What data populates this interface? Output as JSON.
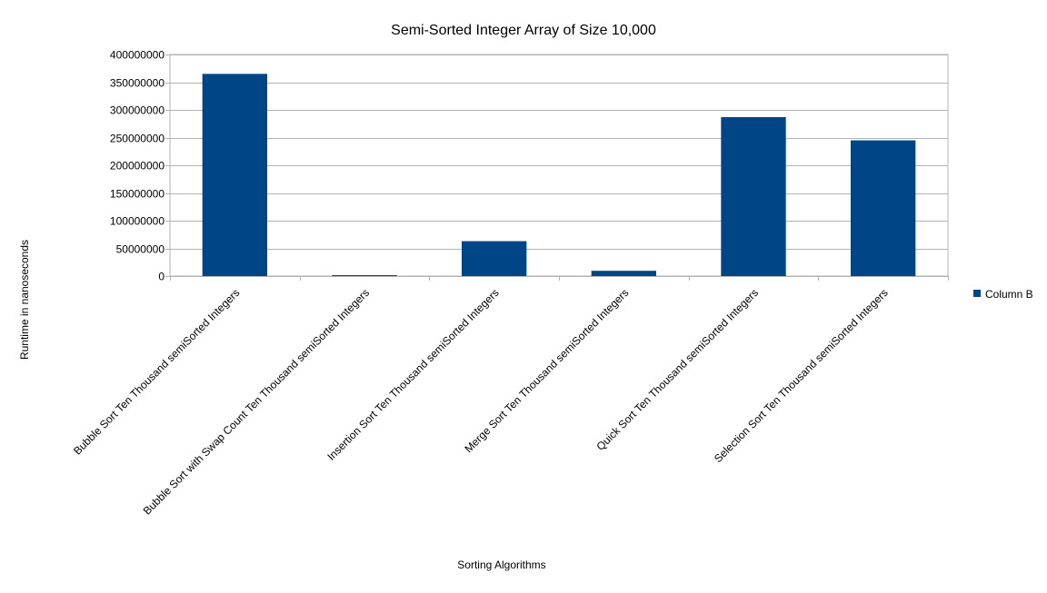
{
  "chart_data": {
    "type": "bar",
    "title": "Semi-Sorted Integer Array of Size 10,000",
    "xlabel": "Sorting Algorithms",
    "ylabel": "Runtime in nanoseconds",
    "categories": [
      "Bubble Sort Ten Thousand semiSorted Integers",
      "Bubble Sort with Swap Count Ten Thousand semiSorted Integers",
      "Insertion Sort Ten Thousand semiSorted Integers",
      "Merge Sort Ten Thousand semiSorted Integers",
      "Quick Sort Ten Thousand semiSorted Integers",
      "Selection Sort Ten Thousand semiSorted Integers"
    ],
    "series": [
      {
        "name": "Column B",
        "color": "#004586",
        "values": [
          365000000,
          500000,
          63000000,
          9500000,
          287000000,
          245000000
        ]
      }
    ],
    "ylim": [
      0,
      400000000
    ],
    "yticks": [
      "0",
      "50000000",
      "100000000",
      "150000000",
      "200000000",
      "250000000",
      "300000000",
      "350000000",
      "400000000"
    ],
    "grid": true,
    "legend_position": "right"
  }
}
